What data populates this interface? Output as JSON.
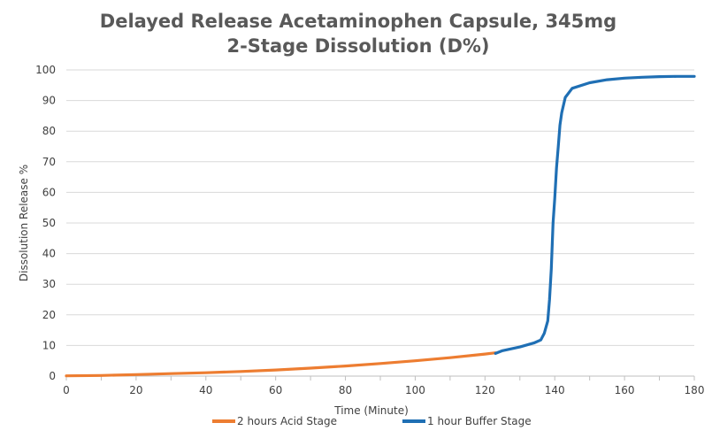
{
  "chart_data": {
    "type": "line",
    "title_line1": "Delayed Release Acetaminophen Capsule, 345mg",
    "title_line2": "2-Stage Dissolution (D%)",
    "xlabel": "Time (Minute)",
    "ylabel": "Dissolution Release %",
    "xlim": [
      0,
      180
    ],
    "ylim": [
      0,
      100
    ],
    "xticks": [
      0,
      20,
      40,
      60,
      80,
      100,
      120,
      140,
      160,
      180
    ],
    "yticks": [
      0,
      10,
      20,
      30,
      40,
      50,
      60,
      70,
      80,
      90,
      100
    ],
    "grid": "horizontal",
    "legend_position": "bottom",
    "series": [
      {
        "name": "2 hours Acid Stage",
        "color": "#ED7D31",
        "points": [
          [
            0,
            0.1
          ],
          [
            10,
            0.2
          ],
          [
            20,
            0.5
          ],
          [
            30,
            0.8
          ],
          [
            40,
            1.1
          ],
          [
            50,
            1.5
          ],
          [
            60,
            2.0
          ],
          [
            70,
            2.6
          ],
          [
            80,
            3.3
          ],
          [
            90,
            4.1
          ],
          [
            100,
            5.0
          ],
          [
            110,
            6.0
          ],
          [
            120,
            7.2
          ],
          [
            123,
            7.6
          ]
        ]
      },
      {
        "name": "1 hour Buffer Stage",
        "color": "#1F6FB4",
        "points": [
          [
            123,
            7.4
          ],
          [
            125,
            8.3
          ],
          [
            130,
            9.5
          ],
          [
            134,
            10.8
          ],
          [
            136,
            11.8
          ],
          [
            137,
            14.0
          ],
          [
            138,
            18.0
          ],
          [
            138.5,
            25.0
          ],
          [
            139,
            35.0
          ],
          [
            139.5,
            50.0
          ],
          [
            140,
            58.0
          ],
          [
            140.5,
            68.0
          ],
          [
            141,
            75.0
          ],
          [
            141.5,
            82.0
          ],
          [
            142,
            86.0
          ],
          [
            143,
            91.0
          ],
          [
            145,
            94.0
          ],
          [
            150,
            95.8
          ],
          [
            155,
            96.8
          ],
          [
            160,
            97.3
          ],
          [
            165,
            97.6
          ],
          [
            170,
            97.8
          ],
          [
            175,
            97.9
          ],
          [
            180,
            97.9
          ]
        ]
      }
    ]
  }
}
